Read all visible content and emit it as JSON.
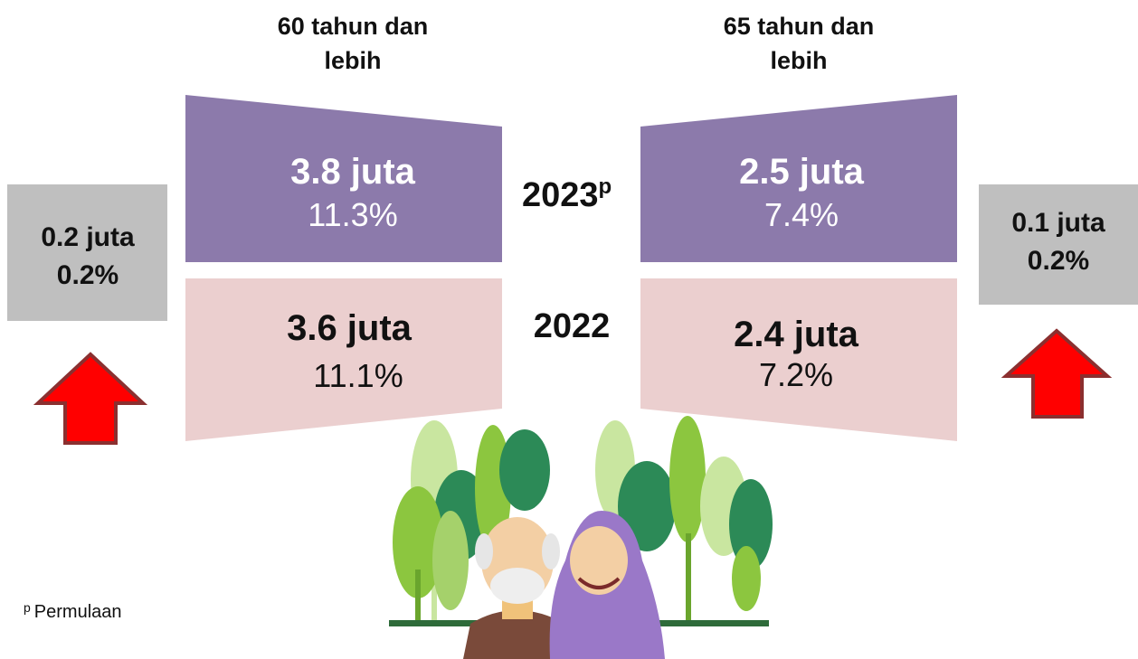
{
  "left": {
    "header": [
      "60 tahun dan",
      "lebih"
    ],
    "y2023": {
      "count": "3.8 juta",
      "percent": "11.3%"
    },
    "y2022": {
      "count": "3.6 juta",
      "percent": "11.1%"
    },
    "change": {
      "count": "0.2 juta",
      "percent": "0.2%"
    }
  },
  "right": {
    "header": [
      "65 tahun dan",
      "lebih"
    ],
    "y2023": {
      "count": "2.5 juta",
      "percent": "7.4%"
    },
    "y2022": {
      "count": "2.4 juta",
      "percent": "7.2%"
    },
    "change": {
      "count": "0.1 juta",
      "percent": "0.2%"
    }
  },
  "years": {
    "current": "2023",
    "current_mark": "p",
    "previous": "2022"
  },
  "footnote": {
    "mark": "p",
    "text": "Permulaan"
  }
}
